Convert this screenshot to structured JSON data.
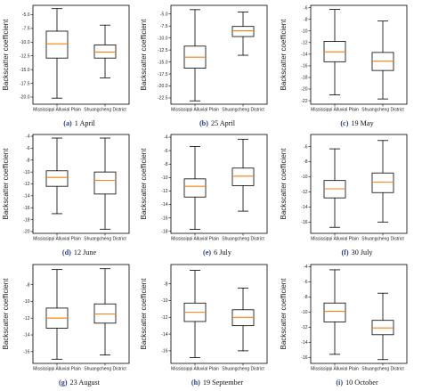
{
  "chart_data": [
    {
      "type": "box",
      "caption_letter": "(a)",
      "caption_text": "1 April",
      "ylabel": "Backscatter coefficient",
      "yticks": [
        -5.0,
        -7.5,
        -10.0,
        -12.5,
        -15.0,
        -17.5,
        -20.0
      ],
      "ytick_labels": [
        "-5.0",
        "-7.5",
        "-10.0",
        "-12.5",
        "-15.0",
        "-17.5",
        "-20.0"
      ],
      "ylim": [
        -21.3,
        -3.3
      ],
      "categories": [
        "Mississippi Alluvial Plain",
        "Shuangcheng District"
      ],
      "boxes": [
        {
          "whislo": -20.2,
          "q1": -12.9,
          "med": -10.3,
          "q3": -8.0,
          "whishi": -3.9
        },
        {
          "whislo": -16.5,
          "q1": -12.9,
          "med": -11.8,
          "q3": -10.5,
          "whishi": -6.9
        }
      ]
    },
    {
      "type": "box",
      "caption_letter": "(b)",
      "caption_text": "25 April",
      "ylabel": "Backscatter coefficient",
      "yticks": [
        -5.0,
        -7.5,
        -10.0,
        -12.5,
        -15.0,
        -17.5,
        -20.0,
        -22.5
      ],
      "ytick_labels": [
        "-5.0",
        "-7.5",
        "-10.0",
        "-12.5",
        "-15.0",
        "-17.5",
        "-20.0",
        "-22.5"
      ],
      "ylim": [
        -23.8,
        -3.2
      ],
      "categories": [
        "Mississippi Alluvial Plain",
        "Shuangcheng District"
      ],
      "boxes": [
        {
          "whislo": -23.1,
          "q1": -16.3,
          "med": -14.0,
          "q3": -11.7,
          "whishi": -4.1
        },
        {
          "whislo": -13.6,
          "q1": -9.7,
          "med": -8.5,
          "q3": -7.6,
          "whishi": -4.6
        }
      ]
    },
    {
      "type": "box",
      "caption_letter": "(c)",
      "caption_text": "19 May",
      "ylabel": "Backscatter coefficient",
      "yticks": [
        -6,
        -8,
        -10,
        -12,
        -14,
        -16,
        -18,
        -20,
        -22
      ],
      "ytick_labels": [
        "-6",
        "-8",
        "-10",
        "-12",
        "-14",
        "-16",
        "-18",
        "-20",
        "-22"
      ],
      "ylim": [
        -22.6,
        -5.6
      ],
      "categories": [
        "Mississippi Alluvial Plain",
        "Shuangcheng District"
      ],
      "boxes": [
        {
          "whislo": -21.0,
          "q1": -15.3,
          "med": -13.6,
          "q3": -11.8,
          "whishi": -6.3
        },
        {
          "whislo": -21.7,
          "q1": -16.8,
          "med": -15.2,
          "q3": -13.7,
          "whishi": -8.3
        }
      ]
    },
    {
      "type": "box",
      "caption_letter": "(d)",
      "caption_text": "12 June",
      "ylabel": "Backscatter coefficient",
      "yticks": [
        -4,
        -6,
        -8,
        -10,
        -12,
        -14,
        -16,
        -18,
        -20
      ],
      "ytick_labels": [
        "-4",
        "-6",
        "-8",
        "-10",
        "-12",
        "-14",
        "-16",
        "-18",
        "-20"
      ],
      "ylim": [
        -20.3,
        -3.7
      ],
      "categories": [
        "Mississippi Alluvial Plain",
        "Shuangcheng District"
      ],
      "boxes": [
        {
          "whislo": -17.0,
          "q1": -12.4,
          "med": -10.9,
          "q3": -9.8,
          "whishi": -4.3
        },
        {
          "whislo": -19.6,
          "q1": -13.7,
          "med": -11.4,
          "q3": -10.0,
          "whishi": -4.3
        }
      ]
    },
    {
      "type": "box",
      "caption_letter": "(e)",
      "caption_text": "6 July",
      "ylabel": "Backscatter coefficient",
      "yticks": [
        -4,
        -6,
        -8,
        -10,
        -12,
        -14,
        -16,
        -18
      ],
      "ytick_labels": [
        "-4",
        "-6",
        "-8",
        "-10",
        "-12",
        "-14",
        "-16",
        "-18"
      ],
      "ylim": [
        -18.3,
        -3.6
      ],
      "categories": [
        "Mississippi Alluvial Plain",
        "Shuangcheng District"
      ],
      "boxes": [
        {
          "whislo": -17.7,
          "q1": -12.9,
          "med": -11.3,
          "q3": -10.2,
          "whishi": -5.4
        },
        {
          "whislo": -15.0,
          "q1": -11.2,
          "med": -9.8,
          "q3": -8.6,
          "whishi": -4.3
        }
      ]
    },
    {
      "type": "box",
      "caption_letter": "(f)",
      "caption_text": "30 July",
      "ylabel": "Backscatter coefficient",
      "yticks": [
        -6,
        -8,
        -10,
        -12,
        -14,
        -16
      ],
      "ytick_labels": [
        "-6",
        "-8",
        "-10",
        "-12",
        "-14",
        "-16"
      ],
      "ylim": [
        -17.5,
        -4.4
      ],
      "categories": [
        "Mississippi Alluvial Plain",
        "Shuangcheng District"
      ],
      "boxes": [
        {
          "whislo": -16.7,
          "q1": -12.8,
          "med": -11.6,
          "q3": -10.5,
          "whishi": -6.3
        },
        {
          "whislo": -16.0,
          "q1": -12.1,
          "med": -10.7,
          "q3": -9.5,
          "whishi": -5.2
        }
      ]
    },
    {
      "type": "box",
      "caption_letter": "(g)",
      "caption_text": "23 August",
      "ylabel": "Backscatter coefficient",
      "yticks": [
        -8,
        -10,
        -12,
        -14,
        -16
      ],
      "ytick_labels": [
        "-8",
        "-10",
        "-12",
        "-14",
        "-16"
      ],
      "ylim": [
        -17.4,
        -5.6
      ],
      "categories": [
        "Mississippi Alluvial Plain",
        "Shuangcheng District"
      ],
      "boxes": [
        {
          "whislo": -16.9,
          "q1": -13.2,
          "med": -12.0,
          "q3": -10.8,
          "whishi": -6.2
        },
        {
          "whislo": -16.4,
          "q1": -12.6,
          "med": -11.5,
          "q3": -10.3,
          "whishi": -6.1
        }
      ]
    },
    {
      "type": "box",
      "caption_letter": "(h)",
      "caption_text": "19 September",
      "ylabel": "Backscatter coefficient",
      "yticks": [
        -8,
        -10,
        -12,
        -14,
        -16
      ],
      "ytick_labels": [
        "-8",
        "-10",
        "-12",
        "-14",
        "-16"
      ],
      "ylim": [
        -17.5,
        -5.7
      ],
      "categories": [
        "Mississippi Alluvial Plain",
        "Shuangcheng District"
      ],
      "boxes": [
        {
          "whislo": -16.8,
          "q1": -12.5,
          "med": -11.4,
          "q3": -10.3,
          "whishi": -6.4
        },
        {
          "whislo": -16.0,
          "q1": -13.0,
          "med": -12.0,
          "q3": -11.1,
          "whishi": -8.5
        }
      ]
    },
    {
      "type": "box",
      "caption_letter": "(i)",
      "caption_text": "10 October",
      "ylabel": "Backscatter coefficient",
      "yticks": [
        -4,
        -6,
        -8,
        -10,
        -12,
        -14,
        -16
      ],
      "ytick_labels": [
        "-4",
        "-6",
        "-8",
        "-10",
        "-12",
        "-14",
        "-16"
      ],
      "ylim": [
        -16.8,
        -3.7
      ],
      "categories": [
        "Mississippi Alluvial Plain",
        "Shuangcheng District"
      ],
      "boxes": [
        {
          "whislo": -15.6,
          "q1": -11.3,
          "med": -9.9,
          "q3": -8.8,
          "whishi": -4.4
        },
        {
          "whislo": -16.3,
          "q1": -13.0,
          "med": -12.1,
          "q3": -11.1,
          "whishi": -7.5
        }
      ]
    }
  ],
  "colors": {
    "median": "#ff7f0e",
    "box": "#000000",
    "caption_letter": "#2a3f8f"
  }
}
